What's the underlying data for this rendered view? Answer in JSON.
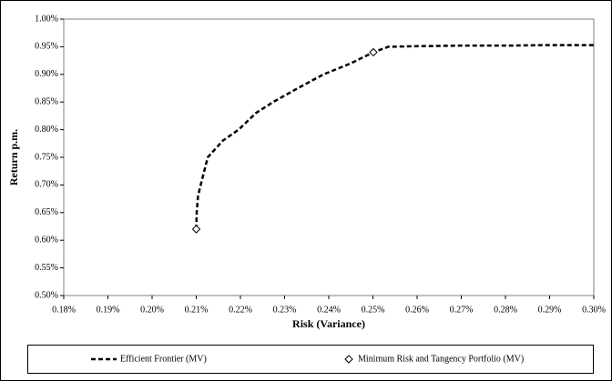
{
  "chart_data": {
    "type": "line",
    "x_label": "Risk (Variance)",
    "y_label": "Return p.m.",
    "xlim": [
      0.18,
      0.3
    ],
    "ylim": [
      0.5,
      1.0
    ],
    "xticks": [
      {
        "value": 0.18,
        "label": "0.18%"
      },
      {
        "value": 0.19,
        "label": "0.19%"
      },
      {
        "value": 0.2,
        "label": "0.20%"
      },
      {
        "value": 0.21,
        "label": "0.21%"
      },
      {
        "value": 0.22,
        "label": "0.22%"
      },
      {
        "value": 0.23,
        "label": "0.23%"
      },
      {
        "value": 0.24,
        "label": "0.24%"
      },
      {
        "value": 0.25,
        "label": "0.25%"
      },
      {
        "value": 0.26,
        "label": "0.26%"
      },
      {
        "value": 0.27,
        "label": "0.27%"
      },
      {
        "value": 0.28,
        "label": "0.28%"
      },
      {
        "value": 0.29,
        "label": "0.29%"
      },
      {
        "value": 0.3,
        "label": "0.30%"
      }
    ],
    "yticks": [
      {
        "value": 0.5,
        "label": "0.50%"
      },
      {
        "value": 0.55,
        "label": "0.55%"
      },
      {
        "value": 0.6,
        "label": "0.60%"
      },
      {
        "value": 0.65,
        "label": "0.65%"
      },
      {
        "value": 0.7,
        "label": "0.70%"
      },
      {
        "value": 0.75,
        "label": "0.75%"
      },
      {
        "value": 0.8,
        "label": "0.80%"
      },
      {
        "value": 0.85,
        "label": "0.85%"
      },
      {
        "value": 0.9,
        "label": "0.90%"
      },
      {
        "value": 0.95,
        "label": "0.95%"
      },
      {
        "value": 1.0,
        "label": "1.00%"
      }
    ],
    "legend_position": "bottom",
    "series": [
      {
        "name": "Efficient Frontier (MV)",
        "color": "#000000",
        "style": "dashed",
        "x": [
          0.21,
          0.2101,
          0.2104,
          0.211,
          0.2126,
          0.216,
          0.2196,
          0.2235,
          0.2274,
          0.233,
          0.2388,
          0.245,
          0.2501,
          0.2535,
          0.26,
          0.27,
          0.28,
          0.29,
          0.3
        ],
        "values": [
          0.62,
          0.65,
          0.68,
          0.7,
          0.75,
          0.78,
          0.8,
          0.83,
          0.85,
          0.875,
          0.9,
          0.92,
          0.94,
          0.95,
          0.951,
          0.952,
          0.952,
          0.953,
          0.953
        ]
      },
      {
        "name": "Minimum Risk and Tangency Portfolio (MV)",
        "color": "#000000",
        "style": "diamond",
        "x": [
          0.21,
          0.2501
        ],
        "values": [
          0.62,
          0.94
        ]
      }
    ]
  }
}
